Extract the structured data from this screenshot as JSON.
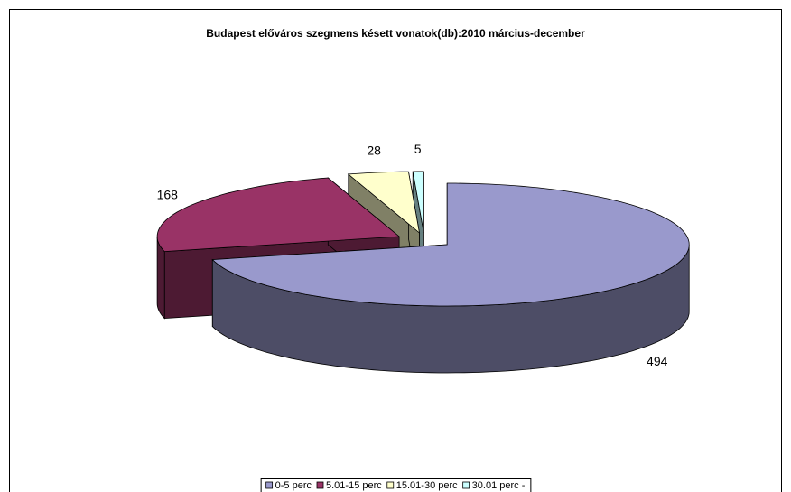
{
  "chart_data": {
    "type": "pie3d",
    "title": "Budapest előváros szegmens késett vonatok(db):2010 március-december",
    "categories": [
      "0-5 perc",
      "5.01-15 perc",
      "15.01-30 perc",
      "30.01 perc -"
    ],
    "values": [
      494,
      168,
      28,
      5
    ],
    "colors": [
      "#9999cc",
      "#993366",
      "#ffffcc",
      "#ccffff"
    ],
    "legend": "bottom"
  }
}
